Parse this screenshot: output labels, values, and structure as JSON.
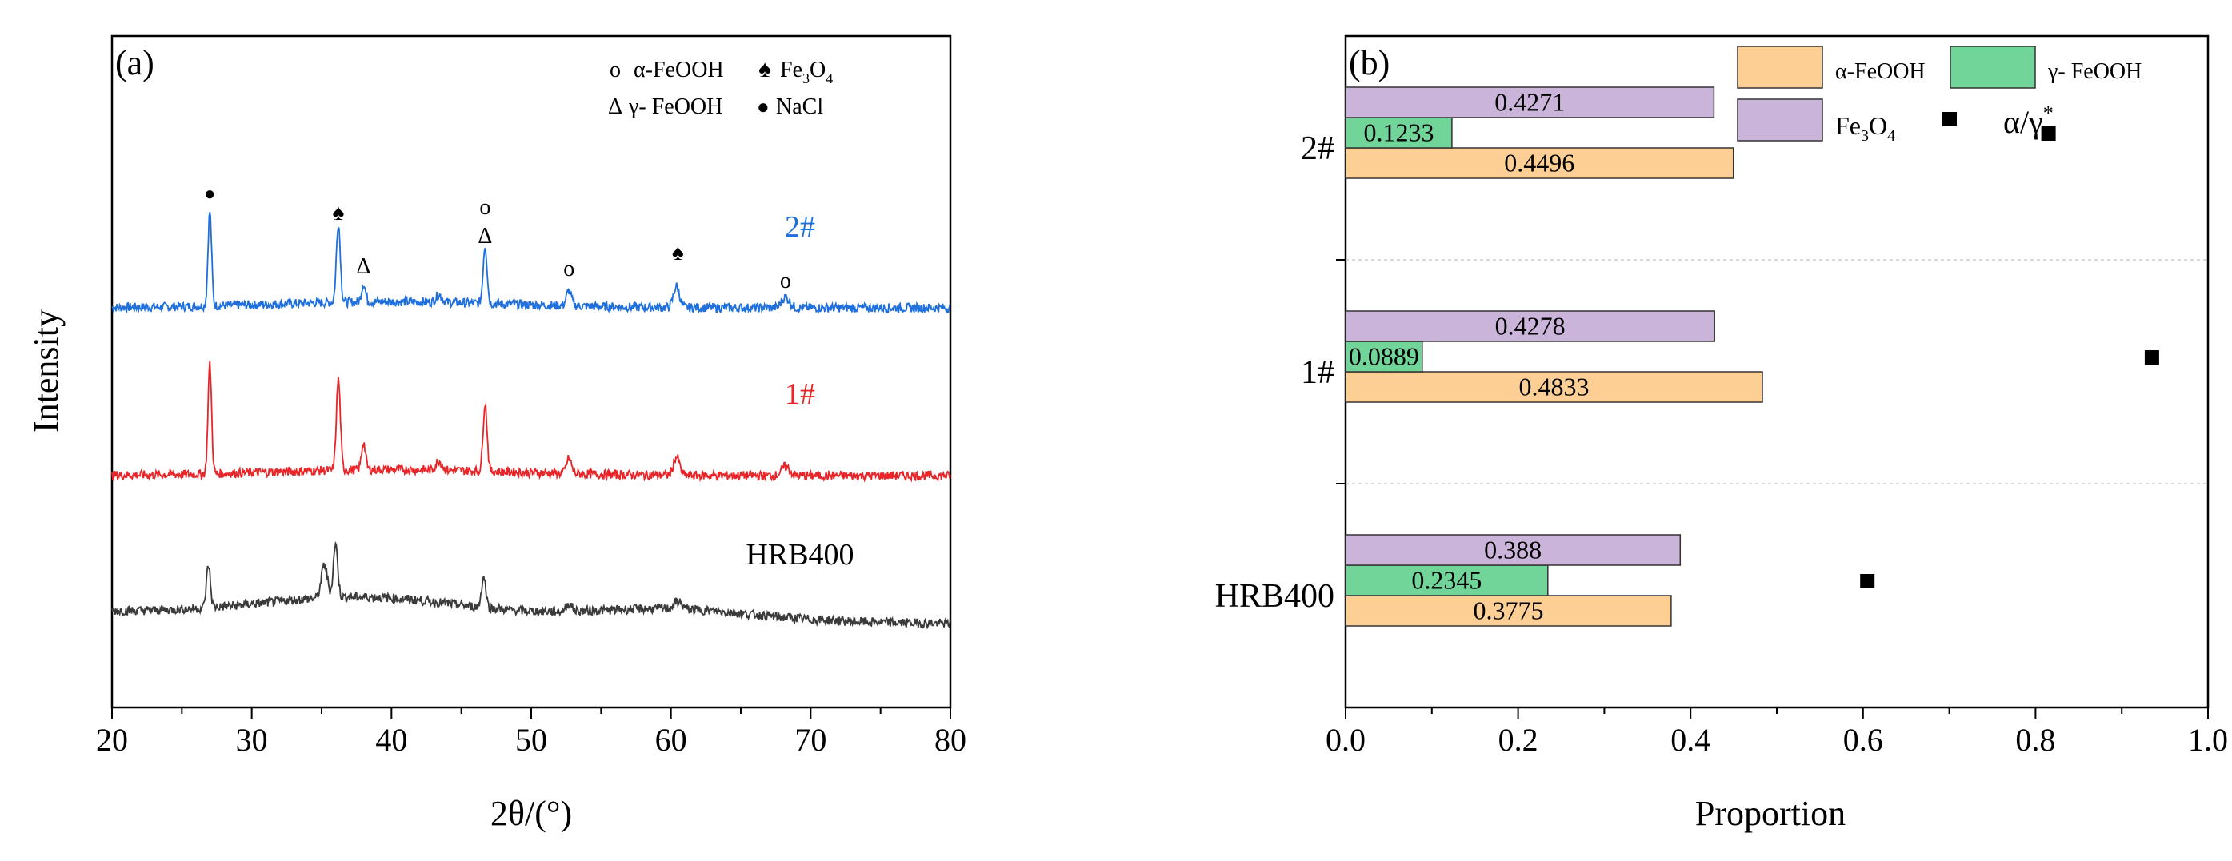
{
  "chart_data": [
    {
      "panel": "(a)",
      "type": "line",
      "xlabel": "2θ/(°)",
      "ylabel": "Intensity",
      "xlim": [
        20,
        80
      ],
      "xticks": [
        20,
        30,
        40,
        50,
        60,
        70,
        80
      ],
      "y_ticks_shown": false,
      "legend": {
        "row1": [
          {
            "symbol": "o",
            "label": "α-FeOOH"
          },
          {
            "symbol": "♠",
            "label": "Fe",
            "sub": "3",
            "after": "O",
            "sub2": "4"
          }
        ],
        "row2": [
          {
            "symbol": "Δ",
            "label": "γ- FeOOH"
          },
          {
            "symbol": "●",
            "label": "NaCl"
          }
        ]
      },
      "series": [
        {
          "name": "2#",
          "color": "#1f6fdc",
          "offset": 2,
          "peaks": [
            {
              "x": 27.0,
              "h": 0.62,
              "w": 0.18
            },
            {
              "x": 36.2,
              "h": 0.52,
              "w": 0.2
            },
            {
              "x": 38.0,
              "h": 0.12,
              "w": 0.2
            },
            {
              "x": 43.4,
              "h": 0.05,
              "w": 0.3
            },
            {
              "x": 46.7,
              "h": 0.38,
              "w": 0.2
            },
            {
              "x": 52.7,
              "h": 0.1,
              "w": 0.25
            },
            {
              "x": 60.4,
              "h": 0.14,
              "w": 0.3
            },
            {
              "x": 68.2,
              "h": 0.07,
              "w": 0.4
            }
          ],
          "annotations": [
            {
              "x": 27.0,
              "symbol": "●"
            },
            {
              "x": 36.2,
              "symbol": "♠"
            },
            {
              "x": 38.0,
              "symbol": "Δ"
            },
            {
              "x": 46.7,
              "symbol": "o"
            },
            {
              "x": 46.7,
              "symbol": "Δ"
            },
            {
              "x": 52.7,
              "symbol": "o"
            },
            {
              "x": 60.5,
              "symbol": "♠"
            },
            {
              "x": 68.2,
              "symbol": "o"
            }
          ]
        },
        {
          "name": "1#",
          "color": "#e8262a",
          "offset": 1,
          "peaks": [
            {
              "x": 27.0,
              "h": 0.72,
              "w": 0.18
            },
            {
              "x": 36.2,
              "h": 0.6,
              "w": 0.2
            },
            {
              "x": 38.0,
              "h": 0.18,
              "w": 0.2
            },
            {
              "x": 43.4,
              "h": 0.06,
              "w": 0.3
            },
            {
              "x": 46.7,
              "h": 0.45,
              "w": 0.2
            },
            {
              "x": 52.7,
              "h": 0.1,
              "w": 0.25
            },
            {
              "x": 60.4,
              "h": 0.12,
              "w": 0.3
            },
            {
              "x": 68.2,
              "h": 0.06,
              "w": 0.4
            }
          ],
          "annotations": []
        },
        {
          "name": "HRB400",
          "color": "#3a3a3a",
          "offset": 0,
          "peaks": [
            {
              "x": 26.9,
              "h": 0.28,
              "w": 0.2
            },
            {
              "x": 35.2,
              "h": 0.22,
              "w": 0.3
            },
            {
              "x": 36.0,
              "h": 0.35,
              "w": 0.22
            },
            {
              "x": 46.6,
              "h": 0.2,
              "w": 0.22
            },
            {
              "x": 52.7,
              "h": 0.05,
              "w": 0.3
            },
            {
              "x": 60.5,
              "h": 0.05,
              "w": 0.4
            }
          ],
          "annotations": []
        }
      ]
    },
    {
      "panel": "(b)",
      "type": "bar",
      "orientation": "horizontal",
      "xlabel": "Proportion",
      "xlim": [
        0,
        1.0
      ],
      "xticks": [
        "0.0",
        "0.2",
        "0.4",
        "0.6",
        "0.8",
        "1.0"
      ],
      "categories": [
        "HRB400",
        "1#",
        "2#"
      ],
      "series": [
        {
          "name": "α-FeOOH",
          "color": "#fdcf94",
          "values": [
            0.3775,
            0.4833,
            0.4496
          ],
          "labels": [
            "0.3775",
            "0.4833",
            "0.4496"
          ]
        },
        {
          "name": "γ- FeOOH",
          "color": "#71d59a",
          "values": [
            0.2345,
            0.0889,
            0.1233
          ],
          "labels": [
            "0.2345",
            "0.0889",
            "0.1233"
          ]
        },
        {
          "name": "Fe3O4",
          "color": "#cbb4d9",
          "values": [
            0.388,
            0.4278,
            0.4271
          ],
          "labels": [
            "0.388",
            "0.4278",
            "0.4271"
          ]
        }
      ],
      "ratio": {
        "name": "α/γ*",
        "values": [
          0.605,
          0.935,
          0.815
        ]
      },
      "legend": {
        "alpha": "α-FeOOH",
        "gamma": "γ- FeOOH",
        "fe_main": "Fe",
        "fe_sub1": "3",
        "fe_mid": "O",
        "fe_sub2": "4",
        "ratio_main": "α/γ",
        "ratio_sup": "*"
      }
    }
  ]
}
